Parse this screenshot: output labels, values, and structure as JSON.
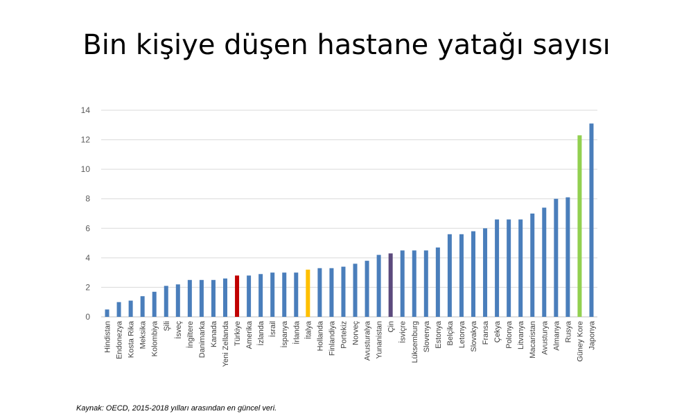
{
  "page": {
    "title": "Bin kişiye düşen hastane yatağı sayısı",
    "source": "Kaynak: OECD, 2015-2018 yılları arasından en güncel veri."
  },
  "chart_data": {
    "type": "bar",
    "title": "",
    "xlabel": "",
    "ylabel": "",
    "ylim": [
      0,
      14
    ],
    "yticks": [
      0,
      2,
      4,
      6,
      8,
      10,
      12,
      14
    ],
    "grid": true,
    "legend": "none",
    "colors": {
      "default": "#4a7ebb",
      "Türkiye": "#c00000",
      "İtalya": "#ffc000",
      "Çin": "#5c4a7d",
      "Güney Kore": "#92d050",
      "grid": "#d9d9d9",
      "axis": "#bfbfbf"
    },
    "categories": [
      "Hindistan",
      "Endonezya",
      "Kosta Rika",
      "Meksika",
      "Kolombiya",
      "Şili",
      "İsveç",
      "İngiltere",
      "Danimarka",
      "Kanada",
      "Yeni Zellanda",
      "Türkiye",
      "Amerika",
      "İzlanda",
      "İsrail",
      "İspanya",
      "İrlanda",
      "İtalya",
      "Hollanda",
      "Finlandiya",
      "Portekiz",
      "Norveç",
      "Avusturalya",
      "Yunanistan",
      "Çin",
      "İsviçre",
      "Lüksemburg",
      "Slovenya",
      "Estonya",
      "Belçika",
      "Letonya",
      "Slovakya",
      "Fransa",
      "Çekya",
      "Polonya",
      "Litvanya",
      "Macaristan",
      "Avusturya",
      "Almanya",
      "Rusya",
      "Güney Kore",
      "Japonya"
    ],
    "values": [
      0.5,
      1.0,
      1.1,
      1.4,
      1.7,
      2.1,
      2.2,
      2.5,
      2.5,
      2.5,
      2.6,
      2.8,
      2.8,
      2.9,
      3.0,
      3.0,
      3.0,
      3.2,
      3.3,
      3.3,
      3.4,
      3.6,
      3.8,
      4.2,
      4.3,
      4.5,
      4.5,
      4.5,
      4.7,
      5.6,
      5.6,
      5.8,
      6.0,
      6.6,
      6.6,
      6.6,
      7.0,
      7.4,
      8.0,
      8.1,
      12.3,
      13.1
    ]
  }
}
